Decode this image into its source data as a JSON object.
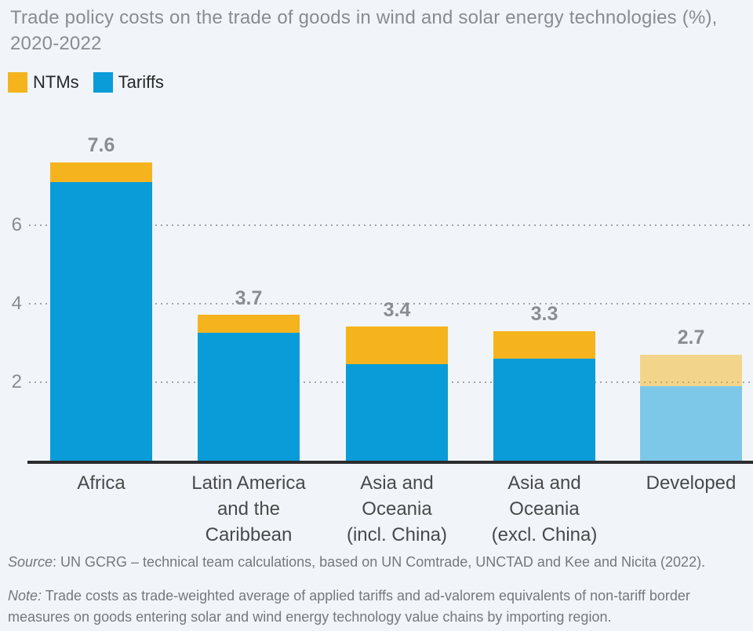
{
  "title": {
    "line1": "Trade policy costs on the trade of goods in wind and solar energy technologies (%),",
    "line2": "2020-2022",
    "full": "Trade policy costs on the trade of goods in wind and solar energy technologies (%), 2020-2022"
  },
  "legend": {
    "items": [
      {
        "label": "NTMs",
        "color": "#F5B41E"
      },
      {
        "label": "Tariffs",
        "color": "#0A9CD8"
      }
    ]
  },
  "chart_data": {
    "type": "bar",
    "stacked": true,
    "title": "Trade policy costs on the trade of goods in wind and solar energy technologies (%), 2020-2022",
    "xlabel": "",
    "ylabel": "",
    "ylim": [
      0,
      8
    ],
    "yticks": [
      2,
      4,
      6
    ],
    "grid": "dotted-horizontal",
    "legend_position": "top-left",
    "categories": [
      "Africa",
      "Latin America and the Caribbean",
      "Asia and Oceania (incl. China)",
      "Asia and Oceania (excl. China)",
      "Developed"
    ],
    "category_label_lines": [
      [
        "Africa"
      ],
      [
        "Latin America",
        "and the",
        "Caribbean"
      ],
      [
        "Asia and",
        "Oceania",
        "(incl. China)"
      ],
      [
        "Asia and",
        "Oceania",
        "(excl. China)"
      ],
      [
        "Developed"
      ]
    ],
    "series": [
      {
        "name": "Tariffs",
        "color": "#0A9CD8",
        "values": [
          7.1,
          3.25,
          2.45,
          2.6,
          1.9
        ]
      },
      {
        "name": "NTMs",
        "color": "#F5B41E",
        "values": [
          0.5,
          0.45,
          0.95,
          0.7,
          0.8
        ]
      }
    ],
    "totals": [
      7.6,
      3.7,
      3.4,
      3.3,
      2.7
    ],
    "total_labels": [
      "7.6",
      "3.7",
      "3.4",
      "3.3",
      "2.7"
    ],
    "muted_categories": [
      "Developed"
    ]
  },
  "footer": {
    "source_label": "Source",
    "source_rest": ": UN GCRG – technical team calculations, based on UN Comtrade, UNCTAD and Kee and Nicita (2022).",
    "note_label": "Note:",
    "note_rest": " Trade costs as trade-weighted average of applied tariffs and ad-valorem equivalents of non-tariff border measures on goods entering solar and wind energy technology value chains by importing region."
  },
  "colors": {
    "background": "#F1F5F9",
    "bar_blue": "#0A9CD8",
    "bar_yellow": "#F5B41E",
    "axis_line": "#2B2C2E",
    "gridline": "#A2A4A7",
    "title_text": "#8A8C8F",
    "value_label": "#8B8D90",
    "tick_label": "#8A8C8E",
    "category_label": "#48494B",
    "legend_text": "#26282A",
    "footer_text": "#76787B"
  }
}
